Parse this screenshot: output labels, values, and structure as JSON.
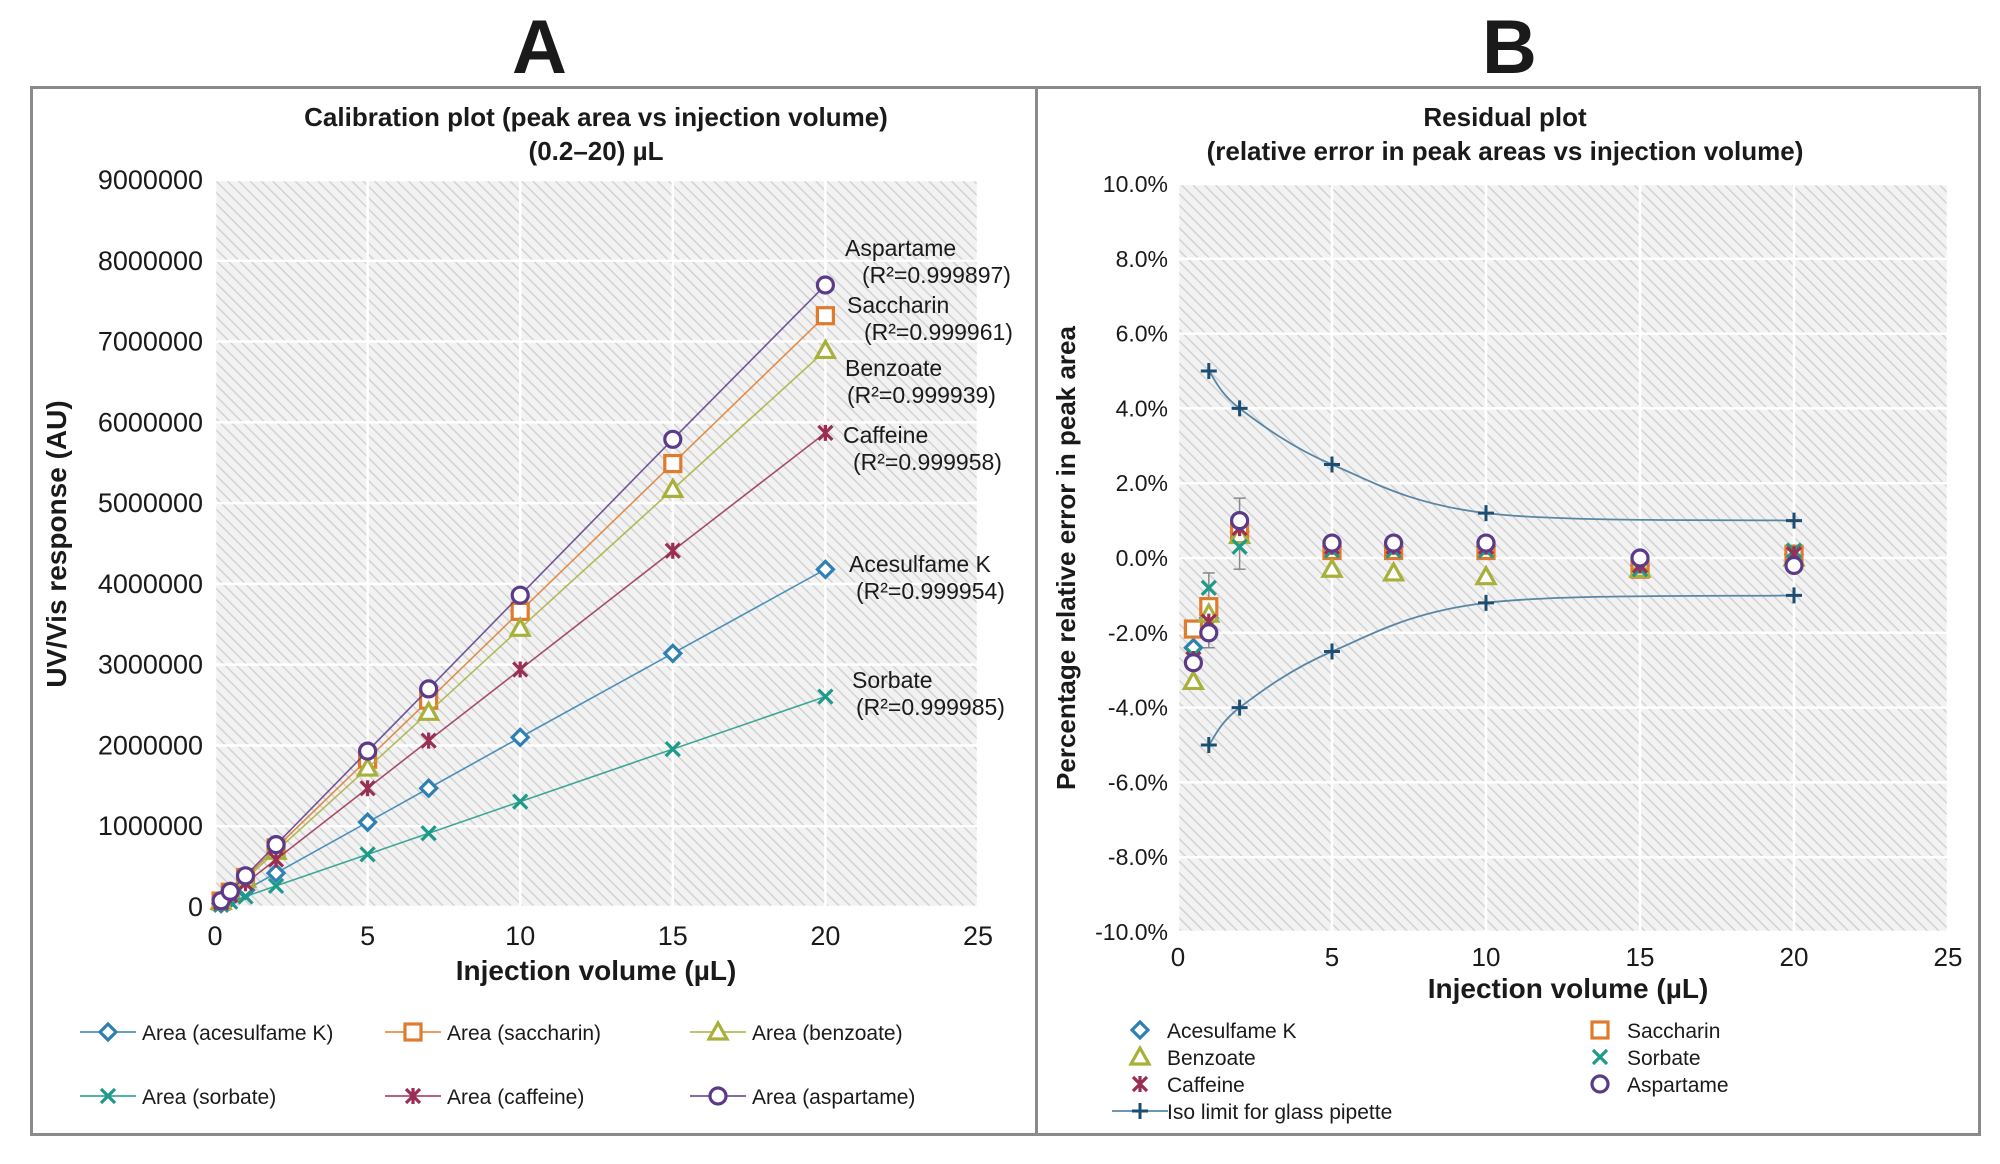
{
  "panels": {
    "a_letter": "A",
    "b_letter": "B"
  },
  "colors": {
    "acesulfame": "#2e80b3",
    "saccharin": "#e07b2d",
    "benzoate": "#a8b03a",
    "sorbate": "#1e9a8a",
    "caffeine": "#9a2f55",
    "aspartame": "#5b3a8a",
    "iso": "#1b4e72"
  },
  "chart_data": [
    {
      "type": "line",
      "title": "Calibration plot (peak area vs injection volume)",
      "subtitle": "(0.2–20) µL",
      "xlabel": "Injection volume (µL)",
      "ylabel": "UV/Vis response (AU)",
      "xlim": [
        0,
        25
      ],
      "ylim": [
        0,
        9000000
      ],
      "x_ticks": [
        "0",
        "5",
        "10",
        "15",
        "20",
        "25"
      ],
      "y_ticks": [
        "0",
        "1000000",
        "2000000",
        "3000000",
        "4000000",
        "5000000",
        "6000000",
        "7000000",
        "8000000",
        "9000000"
      ],
      "x": [
        0.2,
        0.5,
        1,
        2,
        5,
        7,
        10,
        15,
        20
      ],
      "series": [
        {
          "key": "acesulfame",
          "marker": "diamond",
          "name": "Area (acesulfame K)",
          "label": "Acesulfame K",
          "r2": "(R²=0.999954)",
          "values": [
            42000,
            105000,
            210000,
            420000,
            1050000,
            1470000,
            2100000,
            3140000,
            4180000
          ]
        },
        {
          "key": "saccharin",
          "marker": "square",
          "name": "Area (saccharin)",
          "label": "Saccharin",
          "r2": "(R²=0.999961)",
          "values": [
            73000,
            183000,
            366000,
            732000,
            1830000,
            2560000,
            3660000,
            5490000,
            7320000
          ]
        },
        {
          "key": "benzoate",
          "marker": "triangle",
          "name": "Area (benzoate)",
          "label": "Benzoate",
          "r2": "(R²=0.999939)",
          "values": [
            69000,
            172000,
            344000,
            690000,
            1720000,
            2410000,
            3450000,
            5170000,
            6890000
          ]
        },
        {
          "key": "sorbate",
          "marker": "x",
          "name": "Area (sorbate)",
          "label": "Sorbate",
          "r2": "(R²=0.999985)",
          "values": [
            26000,
            65000,
            130000,
            261000,
            652000,
            913000,
            1305000,
            1955000,
            2605000
          ]
        },
        {
          "key": "caffeine",
          "marker": "star",
          "name": "Area (caffeine)",
          "label": "Caffeine",
          "r2": "(R²=0.999958)",
          "values": [
            59000,
            147000,
            294000,
            588000,
            1470000,
            2060000,
            2940000,
            4410000,
            5870000
          ]
        },
        {
          "key": "aspartame",
          "marker": "circle",
          "name": "Area (aspartame)",
          "label": "Aspartame",
          "r2": "(R²=0.999897)",
          "values": [
            77000,
            193000,
            386000,
            772000,
            1930000,
            2700000,
            3860000,
            5790000,
            7700000
          ]
        }
      ]
    },
    {
      "type": "scatter",
      "title": "Residual plot",
      "subtitle": "(relative error in peak areas vs injection volume)",
      "xlabel": "Injection volume (µL)",
      "ylabel": "Percentage relative error in peak area",
      "xlim": [
        0,
        25
      ],
      "ylim": [
        -10,
        10
      ],
      "x_ticks": [
        "0",
        "5",
        "10",
        "15",
        "20",
        "25"
      ],
      "y_ticks": [
        "-10.0%",
        "-8.0%",
        "-6.0%",
        "-4.0%",
        "-2.0%",
        "0.0%",
        "2.0%",
        "4.0%",
        "6.0%",
        "8.0%",
        "10.0%"
      ],
      "series": [
        {
          "key": "acesulfame",
          "marker": "diamond",
          "name": "Acesulfame K",
          "points": [
            [
              0.5,
              -2.4
            ],
            [
              1,
              -1.6
            ],
            [
              2,
              0.7
            ],
            [
              5,
              0.3
            ],
            [
              7,
              0.3
            ],
            [
              10,
              0.3
            ],
            [
              15,
              -0.2
            ],
            [
              20,
              0.1
            ]
          ]
        },
        {
          "key": "saccharin",
          "marker": "square",
          "name": "Saccharin",
          "points": [
            [
              0.5,
              -1.9
            ],
            [
              1,
              -1.3
            ],
            [
              2,
              0.7
            ],
            [
              5,
              0.2
            ],
            [
              7,
              0.2
            ],
            [
              10,
              0.2
            ],
            [
              15,
              -0.3
            ],
            [
              20,
              0.1
            ]
          ]
        },
        {
          "key": "benzoate",
          "marker": "triangle",
          "name": "Benzoate",
          "points": [
            [
              0.5,
              -3.3
            ],
            [
              1,
              -1.5
            ],
            [
              2,
              0.6
            ],
            [
              5,
              -0.3
            ],
            [
              7,
              -0.4
            ],
            [
              10,
              -0.5
            ],
            [
              15,
              -0.3
            ],
            [
              20,
              0.0
            ]
          ]
        },
        {
          "key": "sorbate",
          "marker": "x",
          "name": "Sorbate",
          "points": [
            [
              0.5,
              -2.6
            ],
            [
              1,
              -0.8
            ],
            [
              2,
              0.3
            ],
            [
              5,
              0.2
            ],
            [
              7,
              0.2
            ],
            [
              10,
              0.2
            ],
            [
              15,
              -0.3
            ],
            [
              20,
              0.2
            ]
          ]
        },
        {
          "key": "caffeine",
          "marker": "star",
          "name": "Caffeine",
          "points": [
            [
              0.5,
              -2.7
            ],
            [
              1,
              -1.7
            ],
            [
              2,
              0.8
            ],
            [
              5,
              0.3
            ],
            [
              7,
              0.3
            ],
            [
              10,
              0.3
            ],
            [
              15,
              -0.2
            ],
            [
              20,
              0.1
            ]
          ]
        },
        {
          "key": "aspartame",
          "marker": "circle",
          "name": "Aspartame",
          "points": [
            [
              0.5,
              -2.8
            ],
            [
              1,
              -2.0
            ],
            [
              2,
              1.0
            ],
            [
              5,
              0.4
            ],
            [
              7,
              0.4
            ],
            [
              10,
              0.4
            ],
            [
              15,
              0.0
            ],
            [
              20,
              -0.2
            ]
          ]
        }
      ],
      "error_bars": [
        {
          "x": 1,
          "low": -2.4,
          "high": -0.4
        },
        {
          "x": 2,
          "low": -0.3,
          "high": 1.6
        }
      ],
      "iso_limit": {
        "key": "iso",
        "marker": "plus",
        "name": "Iso limit for glass pipette",
        "upper": [
          [
            1,
            5.0
          ],
          [
            2,
            4.0
          ],
          [
            5,
            2.5
          ],
          [
            10,
            1.2
          ],
          [
            20,
            1.0
          ]
        ],
        "lower": [
          [
            1,
            -5.0
          ],
          [
            2,
            -4.0
          ],
          [
            5,
            -2.5
          ],
          [
            10,
            -1.2
          ],
          [
            20,
            -1.0
          ]
        ]
      }
    }
  ]
}
